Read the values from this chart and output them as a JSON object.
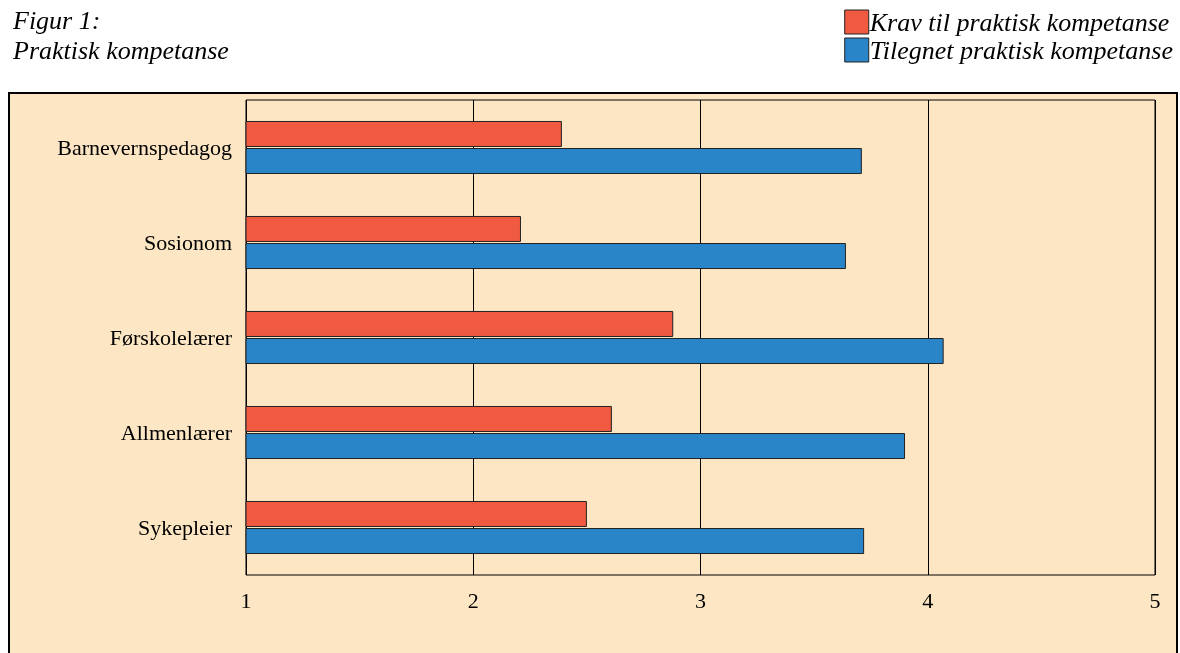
{
  "chart_data": {
    "type": "bar",
    "orientation": "horizontal",
    "title": "Figur 1:",
    "subtitle": "Praktisk kompetanse",
    "categories": [
      "Barnevernspedagog",
      "Sosionom",
      "Førskolelærer",
      "Allmenlærer",
      "Sykepleier"
    ],
    "series": [
      {
        "name": "Krav til praktisk kompetanse",
        "color": "#f05a40",
        "values": [
          2.39,
          2.21,
          2.88,
          2.61,
          2.5
        ]
      },
      {
        "name": "Tilegnet praktisk kompetanse",
        "color": "#2a85c8",
        "values": [
          3.71,
          3.64,
          4.07,
          3.9,
          3.72
        ]
      }
    ],
    "xlim": [
      1,
      5
    ],
    "xticks": [
      1,
      2,
      3,
      4,
      5
    ],
    "grid": "x",
    "legend": "top right"
  }
}
